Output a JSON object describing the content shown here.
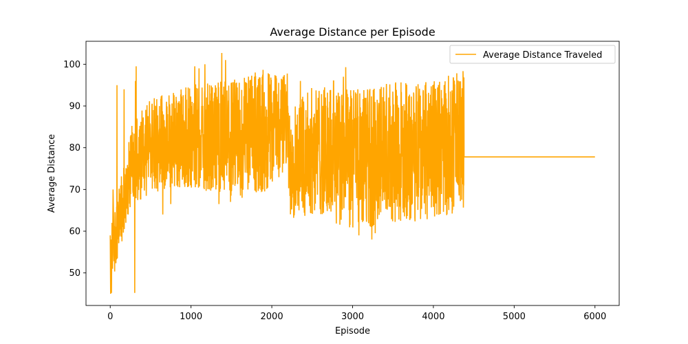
{
  "chart_data": {
    "type": "line",
    "title": "Average Distance per Episode",
    "xlabel": "Episode",
    "ylabel": "Average Distance",
    "xlim": [
      -300,
      6300
    ],
    "ylim": [
      42.2,
      105.5
    ],
    "xticks": [
      0,
      1000,
      2000,
      3000,
      4000,
      5000,
      6000
    ],
    "xtick_labels": [
      "0",
      "1000",
      "2000",
      "3000",
      "4000",
      "5000",
      "6000"
    ],
    "yticks": [
      50,
      60,
      70,
      80,
      90,
      100
    ],
    "ytick_labels": [
      "50",
      "60",
      "70",
      "80",
      "90",
      "100"
    ],
    "grid": false,
    "legend_position": "top-right",
    "series": [
      {
        "name": "Average Distance Traveled",
        "color": "#ffa500",
        "segments": [
          {
            "x_start": 0,
            "x_end": 1000,
            "low": [
              45,
              66,
              69,
              70,
              70
            ],
            "high": [
              59,
              85,
              92,
              93,
              95
            ],
            "spikes_high": [
              95,
              94,
              96,
              99.5
            ],
            "spikes_low": [
              45.2,
              64,
              66.5
            ]
          },
          {
            "x_start": 1000,
            "x_end": 2200,
            "low": [
              70,
              69,
              68,
              69,
              75
            ],
            "high": [
              95,
              96,
              97,
              99,
              98
            ],
            "spikes_high": [
              99.5,
              99,
              100,
              102.7,
              101
            ],
            "spikes_low": [
              66.5,
              67,
              68
            ]
          },
          {
            "x_start": 2200,
            "x_end": 4380,
            "low": [
              63,
              64,
              60,
              61,
              62,
              63,
              65
            ],
            "high": [
              92,
              95,
              94,
              95,
              96,
              96,
              99
            ],
            "spikes_high": [
              96,
              96,
              96,
              97,
              99.3
            ],
            "spikes_low": [
              59,
              58,
              59.5,
              62.5,
              63
            ]
          }
        ],
        "flat_value": 77.8,
        "flat_x_range": [
          4380,
          6000
        ]
      }
    ]
  }
}
